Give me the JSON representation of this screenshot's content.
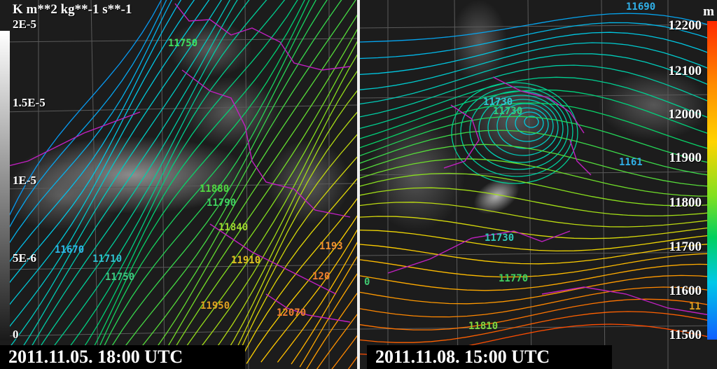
{
  "left_panel": {
    "date": "2011.11.05. 18:00 UTC",
    "colorbar": {
      "unit": "K m**2 kg**-1 s**-1",
      "labels": [
        "2E-5",
        "1.5E-5",
        "1E-5",
        "5E-6",
        "0"
      ],
      "colors": [
        "#ffffff",
        "#1a1a1a"
      ]
    },
    "contour_labels": [
      {
        "text": "11750",
        "color": "#40e060"
      },
      {
        "text": "11880",
        "color": "#50d840"
      },
      {
        "text": "11790",
        "color": "#40d060"
      },
      {
        "text": "11840",
        "color": "#a0d830"
      },
      {
        "text": "11670",
        "color": "#30b8e8"
      },
      {
        "text": "11710",
        "color": "#30c0d0"
      },
      {
        "text": "11750",
        "color": "#40c880"
      },
      {
        "text": "11910",
        "color": "#e0c020"
      },
      {
        "text": "11950",
        "color": "#e0a020"
      },
      {
        "text": "12070",
        "color": "#f08030"
      },
      {
        "text": "120",
        "color": "#f08030"
      },
      {
        "text": "1193",
        "color": "#f09030"
      }
    ]
  },
  "right_panel": {
    "date": "2011.11.08. 15:00 UTC",
    "colorbar": {
      "unit": "m",
      "labels": [
        "12200",
        "12100",
        "12000",
        "11900",
        "11800",
        "11700",
        "11600",
        "11500"
      ],
      "colors": [
        "#ff2a00",
        "#ff8c00",
        "#ffd400",
        "#80e020",
        "#00d060",
        "#00c8e8",
        "#1060ff"
      ]
    },
    "contour_labels": [
      {
        "text": "11690",
        "color": "#30b0e8"
      },
      {
        "text": "11730",
        "color": "#30c8d0"
      },
      {
        "text": "11730",
        "color": "#30d080"
      },
      {
        "text": "11730",
        "color": "#30c8b8"
      },
      {
        "text": "1161",
        "color": "#30b0e8"
      },
      {
        "text": "11770",
        "color": "#40d060"
      },
      {
        "text": "11810",
        "color": "#80d840"
      },
      {
        "text": "0",
        "color": "#40c870"
      },
      {
        "text": "11",
        "color": "#e0a020"
      }
    ]
  }
}
